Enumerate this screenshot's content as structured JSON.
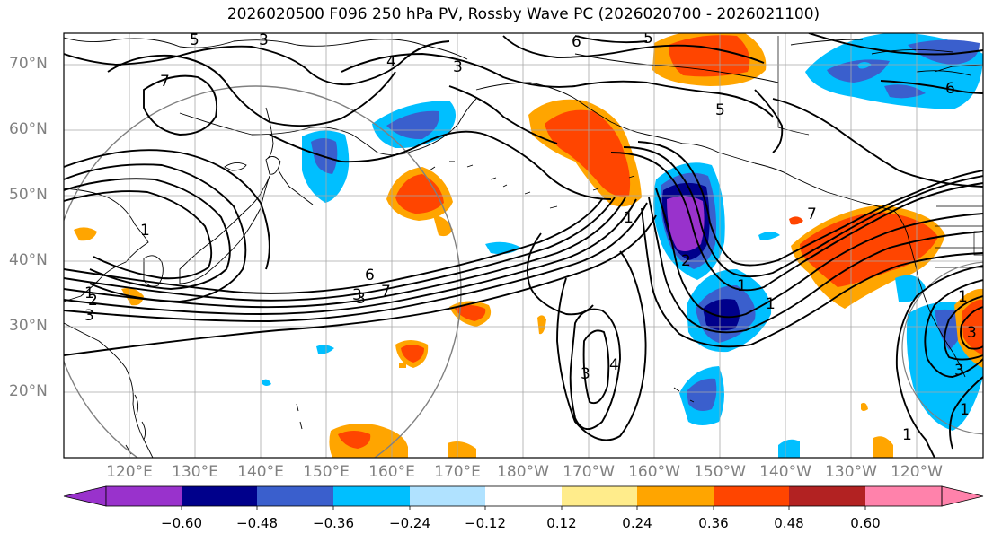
{
  "title": "2026020500 F096 250 hPa PV, Rossby Wave PC (2026020700 - 2026021100)",
  "map": {
    "lat_labels": [
      "70°N",
      "60°N",
      "50°N",
      "40°N",
      "30°N",
      "20°N"
    ],
    "lon_labels": [
      "120°E",
      "130°E",
      "140°E",
      "150°E",
      "160°E",
      "170°E",
      "180°W",
      "170°W",
      "160°W",
      "150°W",
      "140°W",
      "130°W",
      "120°W"
    ],
    "contour_labels": [
      "5",
      "3",
      "4",
      "3",
      "6",
      "5",
      "7",
      "5",
      "7",
      "1",
      "1",
      "7",
      "6",
      "3",
      "3",
      "1",
      "4",
      "3",
      "1",
      "2",
      "1",
      "3",
      "3",
      "1",
      "1",
      "2",
      "1",
      "3",
      "6"
    ]
  },
  "colorbar": {
    "ticks": [
      "−0.60",
      "−0.48",
      "−0.36",
      "−0.24",
      "−0.12",
      "0.12",
      "0.24",
      "0.36",
      "0.48",
      "0.60"
    ],
    "colors": [
      "#9932cc",
      "#00008b",
      "#3a5fcd",
      "#00bfff",
      "#b0e2ff",
      "#ffffff",
      "#ffec8b",
      "#ffa500",
      "#ff4500",
      "#b22222",
      "#ff82ab"
    ]
  }
}
